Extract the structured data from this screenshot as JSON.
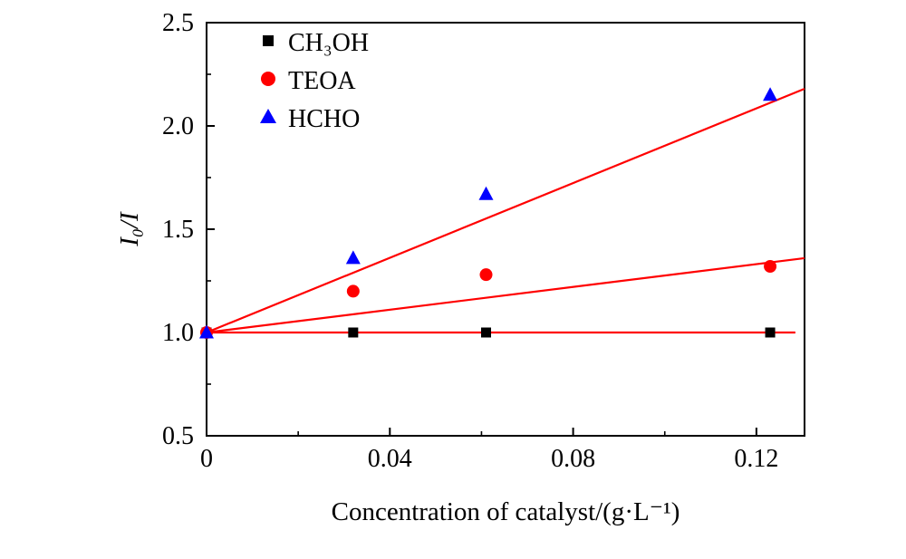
{
  "figure": {
    "background": "#ffffff",
    "frame_color": "#000000"
  },
  "chart_data": {
    "type": "scatter",
    "title": "",
    "xlabel": "Concentration of catalyst/(g·L⁻¹)",
    "ylabel": "I₀/I",
    "xlim": [
      0,
      0.1305
    ],
    "ylim": [
      0.5,
      2.5
    ],
    "x_ticks": [
      0,
      0.04,
      0.08,
      0.12
    ],
    "x_tick_labels": [
      "0",
      "0.04",
      "0.08",
      "0.12"
    ],
    "y_ticks": [
      0.5,
      1.0,
      1.5,
      2.0,
      2.5
    ],
    "y_tick_labels": [
      "0.5",
      "1.0",
      "1.5",
      "2.0",
      "2.5"
    ],
    "x_minor_step": 0.02,
    "y_minor_step": 0.25,
    "grid": false,
    "legend_position": "top-left-inside",
    "series": [
      {
        "name": "CH₃OH",
        "marker": "square",
        "color": "#000000",
        "x": [
          0,
          0.032,
          0.061,
          0.123
        ],
        "y": [
          1.0,
          1.0,
          1.0,
          1.0
        ],
        "fit_line": {
          "color": "#ff0000",
          "x": [
            0,
            0.1285
          ],
          "y": [
            1.0,
            1.0
          ]
        }
      },
      {
        "name": "TEOA",
        "marker": "circle",
        "color": "#ff0000",
        "x": [
          0,
          0.032,
          0.061,
          0.123
        ],
        "y": [
          1.0,
          1.2,
          1.28,
          1.32
        ],
        "fit_line": {
          "color": "#ff0000",
          "x": [
            0,
            0.1305
          ],
          "y": [
            1.0,
            1.36
          ]
        }
      },
      {
        "name": "HCHO",
        "marker": "triangle",
        "color": "#0000ff",
        "x": [
          0,
          0.032,
          0.061,
          0.123
        ],
        "y": [
          1.0,
          1.36,
          1.67,
          2.15
        ],
        "fit_line": {
          "color": "#ff0000",
          "x": [
            0,
            0.1305
          ],
          "y": [
            1.0,
            2.18
          ]
        }
      }
    ]
  }
}
